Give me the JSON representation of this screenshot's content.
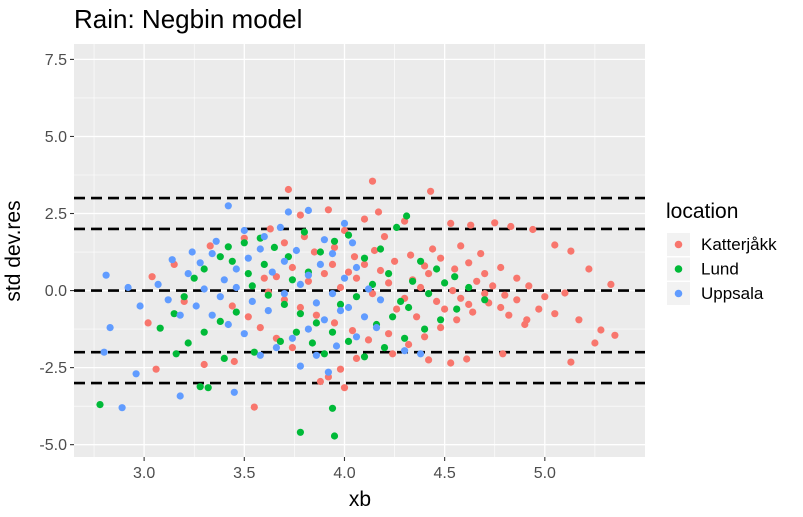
{
  "chart_data": {
    "type": "scatter",
    "title": "Rain: Negbin model",
    "xlabel": "xb",
    "ylabel": "std dev.res",
    "xlim": [
      2.65,
      5.5
    ],
    "ylim": [
      -5.4,
      8.0
    ],
    "xticks": [
      3.0,
      3.5,
      4.0,
      4.5,
      5.0
    ],
    "xtick_labels": [
      "3.0",
      "3.5",
      "4.0",
      "4.5",
      "5.0"
    ],
    "yticks": [
      -5.0,
      -2.5,
      0.0,
      2.5,
      5.0,
      7.5
    ],
    "ytick_labels": [
      "-5.0",
      "-2.5",
      "0.0",
      "2.5",
      "5.0",
      "7.5"
    ],
    "grid": true,
    "reference_lines": [
      -3,
      -2,
      0,
      2,
      3
    ],
    "legend": {
      "title": "location",
      "position": "right",
      "entries": [
        "Katterjåkk",
        "Lund",
        "Uppsala"
      ]
    },
    "series": [
      {
        "name": "Katterjåkk",
        "color": "#F8766D",
        "points": [
          [
            3.72,
            3.28
          ],
          [
            4.14,
            3.55
          ],
          [
            4.43,
            3.22
          ],
          [
            3.78,
            2.45
          ],
          [
            3.92,
            2.62
          ],
          [
            4.1,
            2.32
          ],
          [
            4.17,
            2.55
          ],
          [
            4.3,
            2.25
          ],
          [
            4.53,
            2.18
          ],
          [
            4.63,
            2.12
          ],
          [
            4.75,
            2.2
          ],
          [
            4.83,
            2.08
          ],
          [
            4.94,
            1.98
          ],
          [
            5.05,
            1.48
          ],
          [
            5.13,
            1.28
          ],
          [
            5.22,
            0.7
          ],
          [
            5.33,
            0.2
          ],
          [
            5.1,
            -0.08
          ],
          [
            5.0,
            -0.2
          ],
          [
            4.97,
            -0.6
          ],
          [
            4.91,
            -0.95
          ],
          [
            5.05,
            -0.75
          ],
          [
            5.17,
            -0.95
          ],
          [
            5.28,
            -1.28
          ],
          [
            5.35,
            -1.45
          ],
          [
            5.25,
            -1.7
          ],
          [
            5.13,
            -2.32
          ],
          [
            4.79,
            -2.05
          ],
          [
            4.61,
            -2.22
          ],
          [
            4.53,
            -2.35
          ],
          [
            4.42,
            -2.25
          ],
          [
            4.24,
            -2.05
          ],
          [
            4.06,
            -2.2
          ],
          [
            3.98,
            -2.55
          ],
          [
            3.92,
            -2.8
          ],
          [
            3.88,
            -2.95
          ],
          [
            4.0,
            -3.15
          ],
          [
            3.55,
            -3.78
          ],
          [
            3.45,
            -2.3
          ],
          [
            3.3,
            -2.4
          ],
          [
            3.06,
            -2.55
          ],
          [
            3.02,
            -1.05
          ],
          [
            3.2,
            -0.35
          ],
          [
            3.15,
            0.85
          ],
          [
            3.04,
            0.45
          ],
          [
            3.33,
            1.45
          ],
          [
            3.5,
            1.7
          ],
          [
            3.63,
            2.0
          ],
          [
            3.7,
            1.55
          ],
          [
            3.85,
            1.25
          ],
          [
            3.95,
            1.4
          ],
          [
            4.05,
            1.1
          ],
          [
            4.15,
            1.3
          ],
          [
            4.25,
            0.95
          ],
          [
            4.33,
            1.15
          ],
          [
            4.4,
            0.8
          ],
          [
            4.48,
            1.05
          ],
          [
            4.55,
            0.7
          ],
          [
            4.62,
            0.9
          ],
          [
            4.7,
            0.55
          ],
          [
            4.78,
            0.75
          ],
          [
            4.86,
            0.4
          ],
          [
            4.92,
            0.15
          ],
          [
            4.8,
            -0.15
          ],
          [
            4.72,
            -0.4
          ],
          [
            4.64,
            -0.7
          ],
          [
            4.56,
            -0.95
          ],
          [
            4.48,
            -1.2
          ],
          [
            4.4,
            -1.5
          ],
          [
            4.32,
            -1.75
          ],
          [
            4.22,
            -1.4
          ],
          [
            4.12,
            -1.6
          ],
          [
            4.04,
            -1.3
          ],
          [
            3.95,
            -1.05
          ],
          [
            3.86,
            -0.8
          ],
          [
            3.78,
            -0.55
          ],
          [
            3.7,
            -0.3
          ],
          [
            3.62,
            -0.05
          ],
          [
            3.66,
            0.45
          ],
          [
            3.74,
            0.75
          ],
          [
            3.82,
            0.3
          ],
          [
            3.9,
            0.55
          ],
          [
            3.98,
            0.1
          ],
          [
            4.06,
            0.4
          ],
          [
            4.14,
            -0.1
          ],
          [
            4.22,
            0.25
          ],
          [
            4.3,
            -0.25
          ],
          [
            4.38,
            0.1
          ],
          [
            4.46,
            -0.35
          ],
          [
            4.54,
            0.0
          ],
          [
            4.62,
            -0.45
          ],
          [
            4.7,
            -0.1
          ],
          [
            4.78,
            -0.55
          ],
          [
            4.86,
            -0.3
          ],
          [
            4.42,
            0.55
          ],
          [
            4.34,
            0.35
          ],
          [
            4.18,
            0.65
          ],
          [
            4.1,
            0.85
          ],
          [
            4.02,
            0.6
          ],
          [
            3.94,
            0.85
          ],
          [
            3.58,
            -1.2
          ],
          [
            3.66,
            -1.55
          ],
          [
            3.74,
            -1.85
          ],
          [
            3.52,
            -0.85
          ],
          [
            3.44,
            -0.5
          ],
          [
            4.26,
            -0.6
          ],
          [
            4.36,
            -0.85
          ],
          [
            4.5,
            -0.6
          ],
          [
            4.58,
            -0.25
          ],
          [
            4.66,
            0.3
          ],
          [
            4.74,
            0.15
          ],
          [
            4.82,
            -0.8
          ],
          [
            4.9,
            -1.1
          ],
          [
            4.44,
            1.35
          ],
          [
            4.2,
            1.75
          ],
          [
            4.0,
            1.95
          ],
          [
            3.8,
            1.75
          ],
          [
            4.68,
            1.2
          ],
          [
            4.58,
            1.45
          ],
          [
            3.6,
            0.4
          ]
        ]
      },
      {
        "name": "Lund",
        "color": "#00BA38",
        "points": [
          [
            2.78,
            -3.7
          ],
          [
            3.28,
            -3.12
          ],
          [
            3.32,
            -3.15
          ],
          [
            3.78,
            -4.6
          ],
          [
            3.94,
            -3.82
          ],
          [
            3.95,
            -4.72
          ],
          [
            3.08,
            -1.22
          ],
          [
            3.15,
            -0.75
          ],
          [
            3.2,
            -0.2
          ],
          [
            3.25,
            0.4
          ],
          [
            3.3,
            0.7
          ],
          [
            3.38,
            1.1
          ],
          [
            3.42,
            1.42
          ],
          [
            3.5,
            1.55
          ],
          [
            3.58,
            1.7
          ],
          [
            3.65,
            1.4
          ],
          [
            3.72,
            1.1
          ],
          [
            3.8,
            1.9
          ],
          [
            3.88,
            1.25
          ],
          [
            3.95,
            1.6
          ],
          [
            4.02,
            1.8
          ],
          [
            4.1,
            1.05
          ],
          [
            4.18,
            1.35
          ],
          [
            4.26,
            2.05
          ],
          [
            4.31,
            2.42
          ],
          [
            4.38,
            0.95
          ],
          [
            4.46,
            0.7
          ],
          [
            4.55,
            0.45
          ],
          [
            4.62,
            0.1
          ],
          [
            4.7,
            -0.3
          ],
          [
            4.56,
            -0.6
          ],
          [
            4.48,
            -0.95
          ],
          [
            4.4,
            -1.25
          ],
          [
            4.3,
            -1.55
          ],
          [
            4.2,
            -1.85
          ],
          [
            4.1,
            -2.15
          ],
          [
            4.02,
            -1.65
          ],
          [
            3.94,
            -1.35
          ],
          [
            3.86,
            -1.05
          ],
          [
            3.78,
            -0.75
          ],
          [
            3.7,
            -0.45
          ],
          [
            3.62,
            -0.15
          ],
          [
            3.54,
            0.15
          ],
          [
            3.46,
            -0.7
          ],
          [
            3.38,
            -1.0
          ],
          [
            3.3,
            -1.35
          ],
          [
            3.22,
            -1.7
          ],
          [
            3.16,
            -2.05
          ],
          [
            3.4,
            -2.2
          ],
          [
            3.55,
            -2.0
          ],
          [
            3.68,
            -1.65
          ],
          [
            3.76,
            -1.35
          ],
          [
            3.84,
            -1.7
          ],
          [
            3.9,
            -2.05
          ],
          [
            3.98,
            -0.45
          ],
          [
            4.06,
            -0.2
          ],
          [
            4.14,
            0.2
          ],
          [
            4.22,
            0.55
          ],
          [
            4.28,
            -0.35
          ],
          [
            4.34,
            0.3
          ],
          [
            4.42,
            -0.1
          ],
          [
            4.5,
            0.25
          ],
          [
            3.6,
            0.85
          ],
          [
            3.52,
            0.55
          ],
          [
            3.44,
            0.95
          ],
          [
            4.16,
            -1.1
          ],
          [
            4.24,
            -0.85
          ],
          [
            4.32,
            -0.55
          ],
          [
            3.74,
            0.35
          ],
          [
            3.82,
            0.6
          ]
        ]
      },
      {
        "name": "Uppsala",
        "color": "#619CFF",
        "points": [
          [
            2.81,
            0.5
          ],
          [
            2.92,
            0.1
          ],
          [
            2.98,
            -0.5
          ],
          [
            2.83,
            -1.2
          ],
          [
            2.8,
            -2.0
          ],
          [
            2.89,
            -3.8
          ],
          [
            3.18,
            -3.42
          ],
          [
            3.45,
            -3.3
          ],
          [
            3.42,
            2.75
          ],
          [
            3.72,
            2.55
          ],
          [
            3.82,
            2.6
          ],
          [
            4.0,
            2.18
          ],
          [
            3.07,
            0.2
          ],
          [
            3.12,
            -0.3
          ],
          [
            3.18,
            -0.8
          ],
          [
            3.22,
            0.55
          ],
          [
            3.28,
            0.9
          ],
          [
            3.34,
            1.2
          ],
          [
            3.4,
            0.35
          ],
          [
            3.46,
            0.7
          ],
          [
            3.52,
            1.05
          ],
          [
            3.58,
            1.35
          ],
          [
            3.64,
            0.6
          ],
          [
            3.7,
            0.95
          ],
          [
            3.76,
            1.3
          ],
          [
            3.82,
            0.5
          ],
          [
            3.88,
            0.85
          ],
          [
            3.94,
            1.2
          ],
          [
            4.0,
            0.4
          ],
          [
            4.06,
            0.75
          ],
          [
            4.12,
            0.05
          ],
          [
            4.18,
            -0.3
          ],
          [
            3.98,
            -0.65
          ],
          [
            3.9,
            -0.95
          ],
          [
            3.82,
            -1.25
          ],
          [
            3.74,
            -1.55
          ],
          [
            3.66,
            -1.85
          ],
          [
            3.58,
            -2.1
          ],
          [
            3.5,
            -1.4
          ],
          [
            3.42,
            -1.1
          ],
          [
            3.34,
            -0.8
          ],
          [
            3.26,
            -0.5
          ],
          [
            3.3,
            0.05
          ],
          [
            3.38,
            -0.2
          ],
          [
            3.46,
            0.1
          ],
          [
            3.54,
            -0.35
          ],
          [
            3.62,
            -0.65
          ],
          [
            3.7,
            -0.1
          ],
          [
            3.78,
            0.2
          ],
          [
            3.86,
            -0.4
          ],
          [
            3.94,
            -0.1
          ],
          [
            4.02,
            -0.55
          ],
          [
            4.1,
            -0.85
          ],
          [
            4.16,
            -1.2
          ],
          [
            4.06,
            -1.5
          ],
          [
            3.96,
            -1.8
          ],
          [
            3.86,
            -2.1
          ],
          [
            3.78,
            -2.45
          ],
          [
            3.92,
            -2.65
          ],
          [
            3.6,
            1.75
          ],
          [
            3.68,
            2.05
          ],
          [
            3.5,
            1.95
          ],
          [
            3.9,
            1.65
          ],
          [
            4.04,
            1.55
          ],
          [
            4.3,
            -1.95
          ],
          [
            4.38,
            -2.05
          ],
          [
            3.36,
            1.6
          ],
          [
            3.24,
            1.25
          ],
          [
            3.14,
            1.0
          ],
          [
            2.96,
            -2.7
          ]
        ]
      }
    ]
  }
}
